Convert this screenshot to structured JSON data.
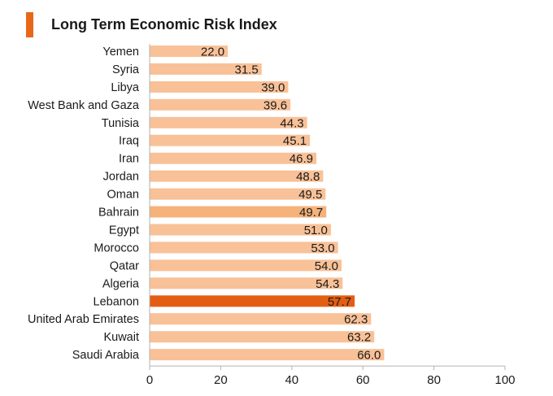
{
  "chart_data": {
    "type": "bar",
    "orientation": "horizontal",
    "title": "Long Term Economic Risk Index",
    "categories": [
      "Yemen",
      "Syria",
      "Libya",
      "West Bank and Gaza",
      "Tunisia",
      "Iraq",
      "Iran",
      "Jordan",
      "Oman",
      "Bahrain",
      "Egypt",
      "Morocco",
      "Qatar",
      "Algeria",
      "Lebanon",
      "United Arab Emirates",
      "Kuwait",
      "Saudi Arabia"
    ],
    "values": [
      22.0,
      31.5,
      39.0,
      39.6,
      44.3,
      45.1,
      46.9,
      48.8,
      49.5,
      49.7,
      51.0,
      53.0,
      54.0,
      54.3,
      57.7,
      62.3,
      63.2,
      66.0
    ],
    "value_labels": [
      "22.0",
      "31.5",
      "39.0",
      "39.6",
      "44.3",
      "45.1",
      "46.9",
      "48.8",
      "49.5",
      "49.7",
      "51.0",
      "53.0",
      "54.0",
      "54.3",
      "57.7",
      "62.3",
      "63.2",
      "66.0"
    ],
    "xlim": [
      0,
      100
    ],
    "x_ticks": [
      "0",
      "20",
      "40",
      "60",
      "80",
      "100"
    ],
    "xlabel": "",
    "ylabel": "",
    "grid": false,
    "colors": {
      "default": "#f9c197",
      "bahrain": "#f6b27b",
      "highlight": "#e35e12",
      "accent": "#e8681a",
      "axis": "#b3b3b3",
      "text": "#1a1a1a"
    },
    "highlight_categories": [
      "Lebanon"
    ],
    "medium_categories": [
      "Bahrain"
    ]
  }
}
